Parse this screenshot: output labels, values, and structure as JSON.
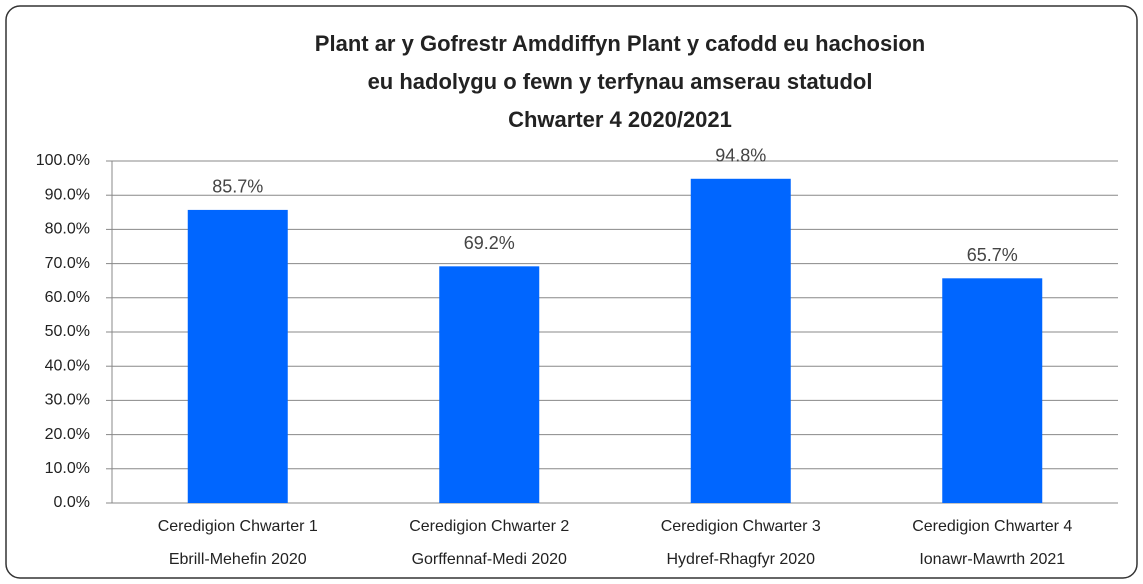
{
  "chart_data": {
    "type": "bar",
    "title": [
      "Plant ar y Gofrestr Amddiffyn Plant y cafodd eu hachosion",
      "eu hadolygu o fewn y terfynau amserau statudol",
      "Chwarter 4 2020/2021"
    ],
    "categories": [
      [
        "Ceredigion Chwarter 1",
        "Ebrill-Mehefin 2020"
      ],
      [
        "Ceredigion Chwarter 2",
        "Gorffennaf-Medi 2020"
      ],
      [
        "Ceredigion Chwarter 3",
        "Hydref-Rhagfyr 2020"
      ],
      [
        "Ceredigion Chwarter 4",
        "Ionawr-Mawrth 2021"
      ]
    ],
    "values": [
      85.7,
      69.2,
      94.8,
      65.7
    ],
    "value_labels": [
      "85.7%",
      "69.2%",
      "94.8%",
      "65.7%"
    ],
    "color": "#0066ff",
    "ylim": [
      0,
      100
    ],
    "yticks": [
      {
        "value": 0,
        "label": "0.0%"
      },
      {
        "value": 10,
        "label": "10.0%"
      },
      {
        "value": 20,
        "label": "20.0%"
      },
      {
        "value": 30,
        "label": "30.0%"
      },
      {
        "value": 40,
        "label": "40.0%"
      },
      {
        "value": 50,
        "label": "50.0%"
      },
      {
        "value": 60,
        "label": "60.0%"
      },
      {
        "value": 70,
        "label": "70.0%"
      },
      {
        "value": 80,
        "label": "80.0%"
      },
      {
        "value": 90,
        "label": "90.0%"
      },
      {
        "value": 100,
        "label": "100.0%"
      }
    ],
    "grid": true
  }
}
